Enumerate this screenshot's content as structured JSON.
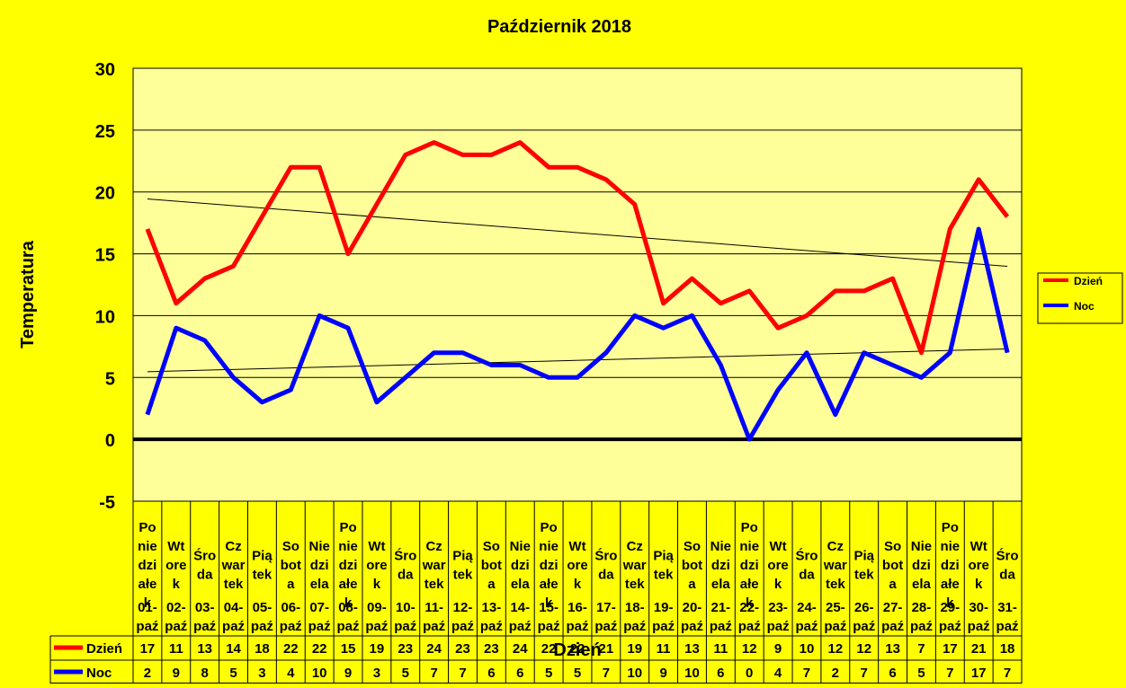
{
  "chart_data": {
    "type": "line",
    "title": "Październik 2018",
    "xlabel": "Dzień",
    "ylabel": "Temperatura",
    "ylim": [
      -5,
      30
    ],
    "yticks": [
      30,
      25,
      20,
      15,
      10,
      5,
      0,
      -5
    ],
    "grid": true,
    "trendlines": true,
    "legend": {
      "position": "right"
    },
    "colors": {
      "background": "#FFFF00",
      "plot_area": "#FFFF99",
      "Dzień": "#FF0000",
      "Noc": "#0000FF"
    },
    "categories_day": [
      [
        "Po",
        "nie",
        "dzi",
        "ałe",
        "k"
      ],
      [
        "Wt",
        "ore",
        "k"
      ],
      [
        "Śro",
        "da"
      ],
      [
        "Cz",
        "war",
        "tek"
      ],
      [
        "Pią",
        "tek"
      ],
      [
        "So",
        "bot",
        "a"
      ],
      [
        "Nie",
        "dzi",
        "ela"
      ],
      [
        "Po",
        "nie",
        "dzi",
        "ałe",
        "k"
      ],
      [
        "Wt",
        "ore",
        "k"
      ],
      [
        "Śro",
        "da"
      ],
      [
        "Cz",
        "war",
        "tek"
      ],
      [
        "Pią",
        "tek"
      ],
      [
        "So",
        "bot",
        "a"
      ],
      [
        "Nie",
        "dzi",
        "ela"
      ],
      [
        "Po",
        "nie",
        "dzi",
        "ałe",
        "k"
      ],
      [
        "Wt",
        "ore",
        "k"
      ],
      [
        "Śro",
        "da"
      ],
      [
        "Cz",
        "war",
        "tek"
      ],
      [
        "Pią",
        "tek"
      ],
      [
        "So",
        "bot",
        "a"
      ],
      [
        "Nie",
        "dzi",
        "ela"
      ],
      [
        "Po",
        "nie",
        "dzi",
        "ałe",
        "k"
      ],
      [
        "Wt",
        "ore",
        "k"
      ],
      [
        "Śro",
        "da"
      ],
      [
        "Cz",
        "war",
        "tek"
      ],
      [
        "Pią",
        "tek"
      ],
      [
        "So",
        "bot",
        "a"
      ],
      [
        "Nie",
        "dzi",
        "ela"
      ],
      [
        "Po",
        "nie",
        "dzi",
        "ałe",
        "k"
      ],
      [
        "Wt",
        "ore",
        "k"
      ],
      [
        "Śro",
        "da"
      ]
    ],
    "categories_date": [
      [
        "01-",
        "paź"
      ],
      [
        "02-",
        "paź"
      ],
      [
        "03-",
        "paź"
      ],
      [
        "04-",
        "paź"
      ],
      [
        "05-",
        "paź"
      ],
      [
        "06-",
        "paź"
      ],
      [
        "07-",
        "paź"
      ],
      [
        "08-",
        "paź"
      ],
      [
        "09-",
        "paź"
      ],
      [
        "10-",
        "paź"
      ],
      [
        "11-",
        "paź"
      ],
      [
        "12-",
        "paź"
      ],
      [
        "13-",
        "paź"
      ],
      [
        "14-",
        "paź"
      ],
      [
        "15-",
        "paź"
      ],
      [
        "16-",
        "paź"
      ],
      [
        "17-",
        "paź"
      ],
      [
        "18-",
        "paź"
      ],
      [
        "19-",
        "paź"
      ],
      [
        "20-",
        "paź"
      ],
      [
        "21-",
        "paź"
      ],
      [
        "22-",
        "paź"
      ],
      [
        "23-",
        "paź"
      ],
      [
        "24-",
        "paź"
      ],
      [
        "25-",
        "paź"
      ],
      [
        "26-",
        "paź"
      ],
      [
        "27-",
        "paź"
      ],
      [
        "28-",
        "paź"
      ],
      [
        "29-",
        "paź"
      ],
      [
        "30-",
        "paź"
      ],
      [
        "31-",
        "paź"
      ]
    ],
    "series": [
      {
        "name": "Dzień",
        "values": [
          17,
          11,
          13,
          14,
          18,
          22,
          22,
          15,
          19,
          23,
          24,
          23,
          23,
          24,
          22,
          22,
          21,
          19,
          11,
          13,
          11,
          12,
          9,
          10,
          12,
          12,
          13,
          7,
          17,
          21,
          18
        ]
      },
      {
        "name": "Noc",
        "values": [
          2,
          9,
          8,
          5,
          3,
          4,
          10,
          9,
          3,
          5,
          7,
          7,
          6,
          6,
          5,
          5,
          7,
          10,
          9,
          10,
          6,
          0,
          4,
          7,
          2,
          7,
          6,
          5,
          7,
          17,
          7
        ]
      }
    ]
  }
}
